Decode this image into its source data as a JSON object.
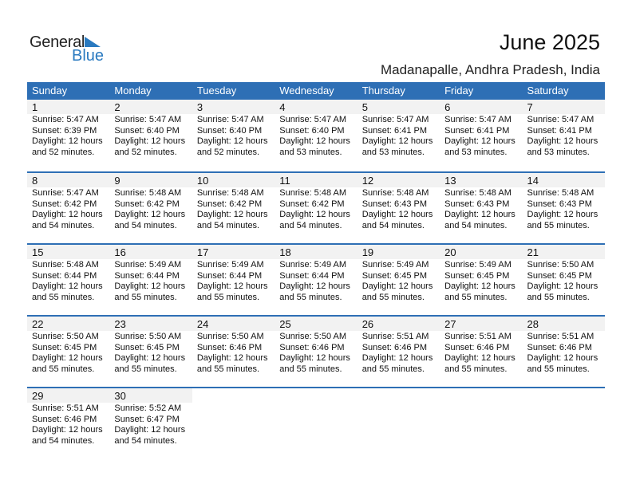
{
  "logo": {
    "word1": "General",
    "word2": "Blue",
    "accent": "#2a7ac0"
  },
  "header": {
    "title": "June 2025",
    "location": "Madanapalle, Andhra Pradesh, India"
  },
  "colors": {
    "header_bg": "#2e6fb5",
    "day_band": "#f2f2f2"
  },
  "weekdays": [
    "Sunday",
    "Monday",
    "Tuesday",
    "Wednesday",
    "Thursday",
    "Friday",
    "Saturday"
  ],
  "weeks": [
    [
      {
        "day": "1",
        "sunrise": "Sunrise: 5:47 AM",
        "sunset": "Sunset: 6:39 PM",
        "daylight1": "Daylight: 12 hours",
        "daylight2": "and 52 minutes."
      },
      {
        "day": "2",
        "sunrise": "Sunrise: 5:47 AM",
        "sunset": "Sunset: 6:40 PM",
        "daylight1": "Daylight: 12 hours",
        "daylight2": "and 52 minutes."
      },
      {
        "day": "3",
        "sunrise": "Sunrise: 5:47 AM",
        "sunset": "Sunset: 6:40 PM",
        "daylight1": "Daylight: 12 hours",
        "daylight2": "and 52 minutes."
      },
      {
        "day": "4",
        "sunrise": "Sunrise: 5:47 AM",
        "sunset": "Sunset: 6:40 PM",
        "daylight1": "Daylight: 12 hours",
        "daylight2": "and 53 minutes."
      },
      {
        "day": "5",
        "sunrise": "Sunrise: 5:47 AM",
        "sunset": "Sunset: 6:41 PM",
        "daylight1": "Daylight: 12 hours",
        "daylight2": "and 53 minutes."
      },
      {
        "day": "6",
        "sunrise": "Sunrise: 5:47 AM",
        "sunset": "Sunset: 6:41 PM",
        "daylight1": "Daylight: 12 hours",
        "daylight2": "and 53 minutes."
      },
      {
        "day": "7",
        "sunrise": "Sunrise: 5:47 AM",
        "sunset": "Sunset: 6:41 PM",
        "daylight1": "Daylight: 12 hours",
        "daylight2": "and 53 minutes."
      }
    ],
    [
      {
        "day": "8",
        "sunrise": "Sunrise: 5:47 AM",
        "sunset": "Sunset: 6:42 PM",
        "daylight1": "Daylight: 12 hours",
        "daylight2": "and 54 minutes."
      },
      {
        "day": "9",
        "sunrise": "Sunrise: 5:48 AM",
        "sunset": "Sunset: 6:42 PM",
        "daylight1": "Daylight: 12 hours",
        "daylight2": "and 54 minutes."
      },
      {
        "day": "10",
        "sunrise": "Sunrise: 5:48 AM",
        "sunset": "Sunset: 6:42 PM",
        "daylight1": "Daylight: 12 hours",
        "daylight2": "and 54 minutes."
      },
      {
        "day": "11",
        "sunrise": "Sunrise: 5:48 AM",
        "sunset": "Sunset: 6:42 PM",
        "daylight1": "Daylight: 12 hours",
        "daylight2": "and 54 minutes."
      },
      {
        "day": "12",
        "sunrise": "Sunrise: 5:48 AM",
        "sunset": "Sunset: 6:43 PM",
        "daylight1": "Daylight: 12 hours",
        "daylight2": "and 54 minutes."
      },
      {
        "day": "13",
        "sunrise": "Sunrise: 5:48 AM",
        "sunset": "Sunset: 6:43 PM",
        "daylight1": "Daylight: 12 hours",
        "daylight2": "and 54 minutes."
      },
      {
        "day": "14",
        "sunrise": "Sunrise: 5:48 AM",
        "sunset": "Sunset: 6:43 PM",
        "daylight1": "Daylight: 12 hours",
        "daylight2": "and 55 minutes."
      }
    ],
    [
      {
        "day": "15",
        "sunrise": "Sunrise: 5:48 AM",
        "sunset": "Sunset: 6:44 PM",
        "daylight1": "Daylight: 12 hours",
        "daylight2": "and 55 minutes."
      },
      {
        "day": "16",
        "sunrise": "Sunrise: 5:49 AM",
        "sunset": "Sunset: 6:44 PM",
        "daylight1": "Daylight: 12 hours",
        "daylight2": "and 55 minutes."
      },
      {
        "day": "17",
        "sunrise": "Sunrise: 5:49 AM",
        "sunset": "Sunset: 6:44 PM",
        "daylight1": "Daylight: 12 hours",
        "daylight2": "and 55 minutes."
      },
      {
        "day": "18",
        "sunrise": "Sunrise: 5:49 AM",
        "sunset": "Sunset: 6:44 PM",
        "daylight1": "Daylight: 12 hours",
        "daylight2": "and 55 minutes."
      },
      {
        "day": "19",
        "sunrise": "Sunrise: 5:49 AM",
        "sunset": "Sunset: 6:45 PM",
        "daylight1": "Daylight: 12 hours",
        "daylight2": "and 55 minutes."
      },
      {
        "day": "20",
        "sunrise": "Sunrise: 5:49 AM",
        "sunset": "Sunset: 6:45 PM",
        "daylight1": "Daylight: 12 hours",
        "daylight2": "and 55 minutes."
      },
      {
        "day": "21",
        "sunrise": "Sunrise: 5:50 AM",
        "sunset": "Sunset: 6:45 PM",
        "daylight1": "Daylight: 12 hours",
        "daylight2": "and 55 minutes."
      }
    ],
    [
      {
        "day": "22",
        "sunrise": "Sunrise: 5:50 AM",
        "sunset": "Sunset: 6:45 PM",
        "daylight1": "Daylight: 12 hours",
        "daylight2": "and 55 minutes."
      },
      {
        "day": "23",
        "sunrise": "Sunrise: 5:50 AM",
        "sunset": "Sunset: 6:45 PM",
        "daylight1": "Daylight: 12 hours",
        "daylight2": "and 55 minutes."
      },
      {
        "day": "24",
        "sunrise": "Sunrise: 5:50 AM",
        "sunset": "Sunset: 6:46 PM",
        "daylight1": "Daylight: 12 hours",
        "daylight2": "and 55 minutes."
      },
      {
        "day": "25",
        "sunrise": "Sunrise: 5:50 AM",
        "sunset": "Sunset: 6:46 PM",
        "daylight1": "Daylight: 12 hours",
        "daylight2": "and 55 minutes."
      },
      {
        "day": "26",
        "sunrise": "Sunrise: 5:51 AM",
        "sunset": "Sunset: 6:46 PM",
        "daylight1": "Daylight: 12 hours",
        "daylight2": "and 55 minutes."
      },
      {
        "day": "27",
        "sunrise": "Sunrise: 5:51 AM",
        "sunset": "Sunset: 6:46 PM",
        "daylight1": "Daylight: 12 hours",
        "daylight2": "and 55 minutes."
      },
      {
        "day": "28",
        "sunrise": "Sunrise: 5:51 AM",
        "sunset": "Sunset: 6:46 PM",
        "daylight1": "Daylight: 12 hours",
        "daylight2": "and 55 minutes."
      }
    ],
    [
      {
        "day": "29",
        "sunrise": "Sunrise: 5:51 AM",
        "sunset": "Sunset: 6:46 PM",
        "daylight1": "Daylight: 12 hours",
        "daylight2": "and 54 minutes."
      },
      {
        "day": "30",
        "sunrise": "Sunrise: 5:52 AM",
        "sunset": "Sunset: 6:47 PM",
        "daylight1": "Daylight: 12 hours",
        "daylight2": "and 54 minutes."
      }
    ]
  ]
}
